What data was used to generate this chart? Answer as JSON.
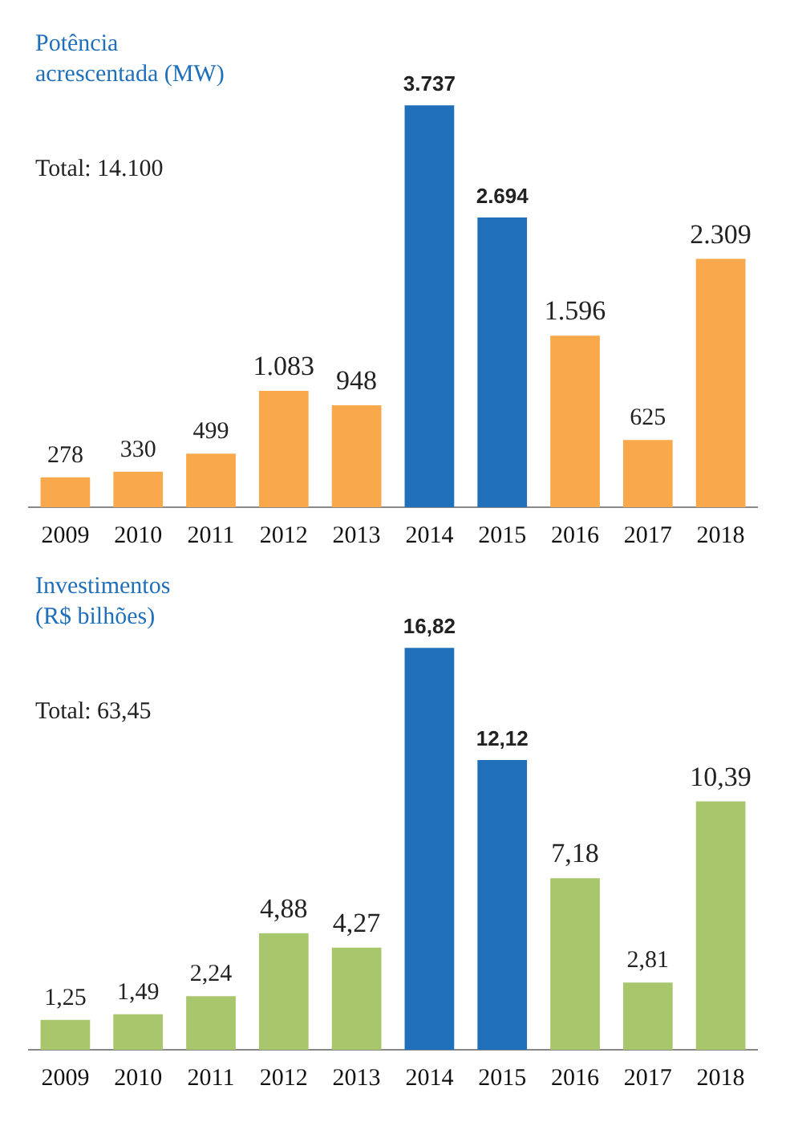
{
  "chart_data": [
    {
      "type": "bar",
      "title": "Potência\nacrescentada (MW)",
      "annotations": [
        "Total: 14.100"
      ],
      "categories": [
        "2009",
        "2010",
        "2011",
        "2012",
        "2013",
        "2014",
        "2015",
        "2016",
        "2017",
        "2018"
      ],
      "values": [
        278,
        330,
        499,
        1083,
        948,
        3737,
        2694,
        1596,
        625,
        2309
      ],
      "colors": [
        "#f9a94b",
        "#f9a94b",
        "#f9a94b",
        "#f9a94b",
        "#f9a94b",
        "#1f6fba",
        "#1f6fba",
        "#f9a94b",
        "#f9a94b",
        "#f9a94b"
      ],
      "value_labels": [
        "278",
        "330",
        "499",
        "1.083",
        "948",
        "3.737",
        "2.694",
        "1.596",
        "625",
        "2.309"
      ],
      "grid": false,
      "legend": false
    },
    {
      "type": "bar",
      "title": "Investimentos\n(R$ bilhões)",
      "annotations": [
        "Total: 63,45"
      ],
      "categories": [
        "2009",
        "2010",
        "2011",
        "2012",
        "2013",
        "2014",
        "2015",
        "2016",
        "2017",
        "2018"
      ],
      "values": [
        1.25,
        1.49,
        2.24,
        4.88,
        4.27,
        16.82,
        12.12,
        7.18,
        2.81,
        10.39
      ],
      "colors": [
        "#a8c66c",
        "#a8c66c",
        "#a8c66c",
        "#a8c66c",
        "#a8c66c",
        "#1f6fba",
        "#1f6fba",
        "#a8c66c",
        "#a8c66c",
        "#a8c66c"
      ],
      "value_labels": [
        "1,25",
        "1,49",
        "2,24",
        "4,88",
        "4,27",
        "16,82",
        "12,12",
        "7,18",
        "2,81",
        "10,39"
      ],
      "grid": false,
      "legend": false
    }
  ]
}
